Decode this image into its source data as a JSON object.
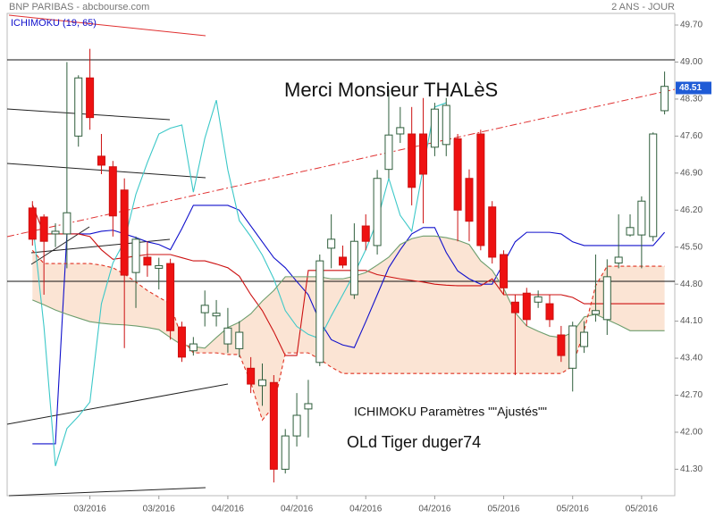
{
  "chart_data": {
    "type": "candlestick",
    "source": "BNP PARIBAS - abcbourse.com",
    "period": "2 ANS - JOUR",
    "indicator": "ICHIMOKU (19, 65)",
    "annotations": [
      "Merci Monsieur THALèS",
      "ICHIMOKU Paramètres \"\"Ajustés\"\"",
      "OLd Tiger duger74"
    ],
    "categories": [
      null,
      null,
      null,
      null,
      null,
      "03/2016",
      null,
      null,
      null,
      null,
      null,
      "03/2016",
      null,
      null,
      null,
      null,
      null,
      "04/2016",
      null,
      null,
      null,
      null,
      null,
      "04/2016",
      null,
      null,
      null,
      null,
      null,
      "04/2016",
      null,
      null,
      null,
      null,
      null,
      "04/2016",
      null,
      null,
      null,
      null,
      null,
      "05/2016",
      null,
      null,
      null,
      null,
      null,
      "05/2016",
      null,
      null,
      null,
      null,
      null,
      "05/2016",
      null,
      null
    ],
    "open": [
      46.24,
      46.07,
      45.75,
      45.75,
      47.6,
      48.7,
      47.22,
      47.02,
      46.58,
      45.02,
      45.31,
      45.1,
      45.19,
      43.99,
      43.54,
      44.26,
      44.2,
      43.67,
      43.58,
      43.21,
      42.88,
      42.94,
      41.3,
      41.93,
      42.44,
      43.32,
      45.48,
      45.31,
      44.6,
      45.9,
      45.53,
      46.97,
      47.64,
      47.64,
      47.64,
      47.39,
      47.44,
      47.55,
      46.8,
      47.64,
      46.26,
      45.36,
      44.46,
      44.63,
      44.46,
      44.43,
      43.84,
      43.21,
      43.62,
      44.23,
      44.13,
      45.2,
      45.73,
      45.73,
      45.7,
      48.08
    ],
    "high": [
      46.37,
      46.12,
      45.95,
      49.0,
      48.75,
      49.25,
      47.64,
      47.13,
      46.8,
      45.7,
      45.61,
      45.3,
      45.28,
      44.09,
      43.8,
      44.68,
      44.5,
      44.35,
      44.1,
      43.42,
      43.3,
      43.08,
      42.06,
      42.74,
      42.99,
      45.36,
      46.12,
      45.53,
      45.95,
      46.12,
      46.96,
      48.48,
      48.15,
      48.15,
      48.32,
      48.23,
      48.32,
      47.64,
      46.97,
      47.72,
      46.37,
      45.44,
      44.6,
      44.73,
      44.68,
      44.6,
      44.01,
      44.09,
      44.1,
      45.36,
      45.27,
      46.12,
      46.12,
      46.46,
      47.67,
      48.82
    ],
    "low": [
      45.53,
      44.6,
      45.5,
      45.1,
      47.4,
      47.72,
      46.88,
      45.7,
      43.59,
      44.35,
      44.94,
      44.7,
      43.75,
      43.33,
      43.45,
      44.0,
      44.0,
      43.5,
      43.42,
      42.74,
      42.5,
      41.05,
      41.22,
      41.73,
      41.9,
      43.25,
      45.1,
      45.1,
      44.52,
      45.44,
      45.36,
      46.8,
      47.47,
      46.29,
      45.95,
      47.22,
      47.22,
      45.61,
      45.61,
      45.44,
      45.19,
      44.6,
      43.08,
      44.01,
      44.35,
      43.99,
      43.33,
      42.77,
      43.5,
      44.09,
      43.84,
      45.1,
      45.7,
      45.1,
      45.61,
      48.01
    ],
    "close": [
      45.65,
      45.61,
      45.8,
      46.15,
      48.7,
      47.95,
      47.05,
      46.09,
      44.97,
      45.65,
      45.16,
      45.15,
      43.92,
      43.42,
      43.67,
      44.4,
      44.25,
      43.97,
      43.89,
      42.91,
      42.99,
      41.3,
      41.93,
      42.32,
      42.54,
      45.24,
      45.65,
      45.16,
      45.61,
      45.61,
      46.8,
      47.62,
      47.76,
      46.63,
      46.88,
      48.11,
      48.18,
      46.2,
      45.99,
      45.53,
      45.31,
      44.73,
      44.26,
      44.13,
      44.56,
      44.13,
      43.45,
      44.01,
      43.89,
      44.3,
      44.94,
      45.31,
      45.87,
      46.37,
      47.64,
      48.54
    ],
    "up_color": "#ffffff",
    "down_color": "#ee1111",
    "last_price": 48.51,
    "last_price_color": "#1f5bd6",
    "cloud_color": "#fbe4d4",
    "lines": [
      {
        "color": "#1010cc",
        "dash": false,
        "values": [
          41.78,
          41.78,
          41.78,
          45.75,
          45.75,
          45.75,
          45.8,
          45.82,
          45.75,
          45.68,
          45.6,
          45.55,
          45.45,
          45.85,
          46.29,
          46.29,
          46.29,
          46.29,
          46.2,
          45.9,
          45.6,
          45.3,
          45.11,
          44.85,
          44.6,
          44.1,
          43.75,
          43.65,
          43.6,
          44.09,
          44.6,
          45.11,
          45.45,
          45.75,
          45.87,
          45.87,
          45.4,
          45.05,
          44.9,
          44.8,
          44.8,
          45.2,
          45.6,
          45.78,
          45.78,
          45.78,
          45.75,
          45.6,
          45.53,
          45.53,
          45.53,
          45.53,
          45.53,
          45.53,
          45.53,
          45.78
        ]
      },
      {
        "color": "#cc1111",
        "dash": false,
        "values": [
          46.3,
          45.75,
          45.75,
          45.75,
          45.75,
          45.7,
          45.45,
          45.27,
          45.3,
          45.33,
          45.36,
          45.36,
          45.36,
          45.3,
          45.24,
          45.24,
          45.18,
          45.11,
          44.95,
          44.6,
          44.3,
          43.9,
          43.45,
          43.45,
          45.06,
          45.06,
          45.06,
          45.06,
          45.06,
          45.06,
          44.98,
          44.94,
          44.9,
          44.87,
          44.84,
          44.8,
          44.78,
          44.77,
          44.77,
          44.77,
          44.9,
          44.6,
          44.6,
          44.6,
          44.6,
          44.6,
          44.6,
          44.55,
          44.43,
          44.43,
          44.43,
          44.43,
          44.43,
          44.43,
          44.43,
          44.43
        ]
      },
      {
        "color": "#3cc8c8",
        "dash": false,
        "values": [
          46.0,
          44.0,
          41.36,
          42.07,
          42.3,
          42.57,
          44.43,
          45.2,
          45.61,
          46.5,
          47.1,
          47.64,
          47.75,
          47.81,
          46.54,
          47.56,
          48.28,
          46.96,
          46.0,
          45.7,
          45.35,
          44.9,
          44.3,
          44.0,
          43.85,
          43.77,
          44.2,
          44.6,
          45.0,
          45.45,
          46.0,
          46.8,
          46.1,
          45.8,
          47.0,
          48.15,
          48.23,
          null,
          null,
          null,
          null,
          null,
          null,
          null,
          null,
          null,
          null,
          null,
          null,
          null,
          null,
          null,
          null,
          null,
          null,
          null
        ]
      },
      {
        "color": "#6e9e6e",
        "dash": false,
        "values": [
          44.5,
          44.41,
          44.31,
          44.23,
          44.16,
          44.09,
          44.06,
          44.04,
          44.03,
          44.01,
          43.98,
          43.94,
          43.79,
          43.65,
          43.62,
          43.59,
          43.79,
          43.98,
          44.08,
          44.24,
          44.48,
          44.68,
          44.94,
          44.94,
          44.94,
          44.94,
          44.9,
          44.9,
          44.95,
          45.02,
          45.16,
          45.31,
          45.55,
          45.66,
          45.71,
          45.71,
          45.68,
          45.63,
          45.55,
          45.24,
          45.06,
          44.72,
          44.26,
          44.01,
          43.91,
          43.82,
          43.79,
          43.89,
          44.18,
          44.23,
          44.13,
          44.03,
          43.92,
          43.92,
          43.92,
          43.92
        ]
      },
      {
        "color": "#e03020",
        "dash": true,
        "values": [
          45.44,
          45.19,
          45.19,
          45.19,
          45.19,
          45.19,
          45.16,
          45.11,
          44.99,
          44.84,
          44.68,
          44.55,
          44.43,
          43.77,
          43.5,
          43.5,
          43.5,
          43.47,
          43.47,
          42.94,
          42.23,
          42.49,
          43.5,
          43.5,
          43.5,
          43.38,
          43.23,
          43.11,
          43.11,
          43.11,
          43.11,
          43.11,
          43.11,
          43.11,
          43.11,
          43.11,
          43.11,
          43.11,
          43.11,
          43.11,
          43.11,
          43.11,
          43.11,
          43.11,
          43.11,
          43.11,
          43.11,
          43.25,
          43.92,
          44.77,
          45.14,
          45.14,
          45.14,
          45.14,
          45.14,
          45.14
        ]
      }
    ],
    "ylim": [
      40.8,
      49.92
    ],
    "yticks": [
      {
        "value": 41.3,
        "label": "41.30"
      },
      {
        "value": 42,
        "label": "42.00"
      },
      {
        "value": 42.7,
        "label": "42.70"
      },
      {
        "value": 43.4,
        "label": "43.40"
      },
      {
        "value": 44.1,
        "label": "44.10"
      },
      {
        "value": 44.8,
        "label": "44.80"
      },
      {
        "value": 45.5,
        "label": "45.50"
      },
      {
        "value": 46.2,
        "label": "46.20"
      },
      {
        "value": 46.9,
        "label": "46.90"
      },
      {
        "value": 47.6,
        "label": "47.60"
      },
      {
        "value": 48.3,
        "label": "48.30"
      },
      {
        "value": 49,
        "label": "49.00"
      },
      {
        "value": 49.7,
        "label": "49.70"
      }
    ],
    "grid": false
  }
}
